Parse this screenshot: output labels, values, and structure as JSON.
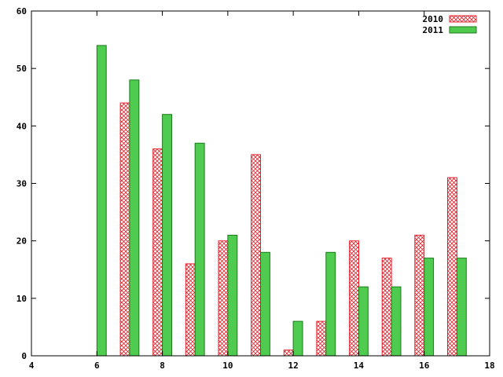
{
  "chart_data": {
    "type": "bar",
    "xlim": [
      4,
      18
    ],
    "ylim": [
      0,
      60
    ],
    "xticks": [
      4,
      6,
      8,
      10,
      12,
      14,
      16,
      18
    ],
    "yticks": [
      0,
      10,
      20,
      30,
      40,
      50,
      60
    ],
    "categories": [
      6,
      7,
      8,
      9,
      10,
      11,
      12,
      13,
      14,
      15,
      16,
      17
    ],
    "legend_position": "top-right",
    "grid": false,
    "series": [
      {
        "name": "2010",
        "style": "crosshatch",
        "color": "#e8202a",
        "values": [
          0,
          44,
          36,
          16,
          20,
          35,
          1,
          6,
          20,
          17,
          21,
          31
        ]
      },
      {
        "name": "2011",
        "style": "solid",
        "color": "#4fcc4f",
        "stroke": "#1a7a1a",
        "values": [
          54,
          48,
          42,
          37,
          21,
          18,
          6,
          18,
          12,
          12,
          17,
          17
        ]
      }
    ]
  }
}
